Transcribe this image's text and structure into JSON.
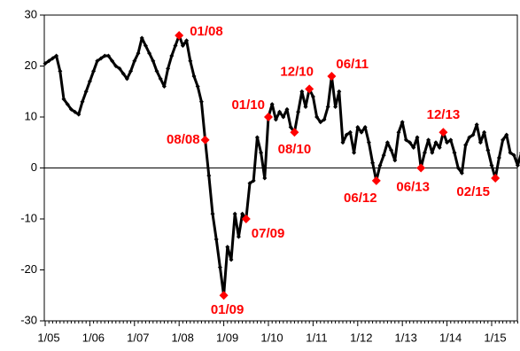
{
  "chart_data": {
    "type": "line",
    "categories": [
      "1/05",
      null,
      null,
      null,
      null,
      null,
      null,
      null,
      null,
      null,
      null,
      null,
      "1/06",
      null,
      null,
      null,
      null,
      null,
      null,
      null,
      null,
      null,
      null,
      null,
      "1/07",
      null,
      null,
      null,
      null,
      null,
      null,
      null,
      null,
      null,
      null,
      null,
      "1/08",
      null,
      null,
      null,
      null,
      null,
      null,
      null,
      null,
      null,
      null,
      null,
      "1/09",
      null,
      null,
      null,
      null,
      null,
      null,
      null,
      null,
      null,
      null,
      null,
      "1/10",
      null,
      null,
      null,
      null,
      null,
      null,
      null,
      null,
      null,
      null,
      null,
      "1/11",
      null,
      null,
      null,
      null,
      null,
      null,
      null,
      null,
      null,
      null,
      null,
      "1/12",
      null,
      null,
      null,
      null,
      null,
      null,
      null,
      null,
      null,
      null,
      null,
      "1/13",
      null,
      null,
      null,
      null,
      null,
      null,
      null,
      null,
      null,
      null,
      null,
      "1/14",
      null,
      null,
      null,
      null,
      null,
      null,
      null,
      null,
      null,
      null,
      null,
      "1/15",
      null,
      null,
      null,
      null,
      null,
      null,
      null,
      null
    ],
    "series": [
      {
        "color": "#000000",
        "values": [
          20.5,
          21,
          21.5,
          22,
          19,
          13.5,
          12.5,
          11.5,
          11,
          10.5,
          13,
          15,
          17,
          19,
          21,
          21.5,
          22,
          22,
          21,
          20,
          19.5,
          18.5,
          17.5,
          19,
          21,
          22.5,
          25.5,
          24,
          22.5,
          21,
          19,
          17.5,
          16,
          19.5,
          22,
          24,
          26,
          24,
          25,
          21,
          18,
          16,
          13,
          5.5,
          -1.5,
          -9,
          -14,
          -19.5,
          -25,
          -15.5,
          -18,
          -9,
          -13.5,
          -9,
          -10,
          -3,
          -2.5,
          6,
          3,
          -2,
          10,
          12.5,
          9.5,
          11,
          10,
          11.5,
          8,
          7,
          11,
          15,
          12,
          15.5,
          14,
          10,
          9,
          9.5,
          12,
          18,
          12,
          15,
          5,
          6.5,
          7,
          3,
          8,
          7,
          8,
          5,
          1,
          -2.5,
          0.5,
          2.5,
          5,
          3.5,
          1.5,
          7,
          9,
          5.5,
          5,
          4,
          6,
          0,
          3,
          5.5,
          3,
          5,
          4,
          7,
          5,
          5.5,
          3,
          0,
          -1,
          4.5,
          6,
          6.5,
          8.5,
          5,
          7,
          3.5,
          0.5,
          -2,
          2,
          5.5,
          6.5,
          3,
          2.5,
          0.5,
          3
        ]
      }
    ],
    "annotations": [
      "01/08",
      "08/08",
      "01/09",
      "07/09",
      "01/10",
      "08/10",
      "12/10",
      "06/11",
      "06/12",
      "06/13",
      "12/13",
      "02/15"
    ],
    "annotation_color": "#ff0000",
    "ylim": [
      -30,
      30
    ],
    "yticks": [
      -30,
      -20,
      -10,
      0,
      10,
      20,
      30
    ]
  }
}
